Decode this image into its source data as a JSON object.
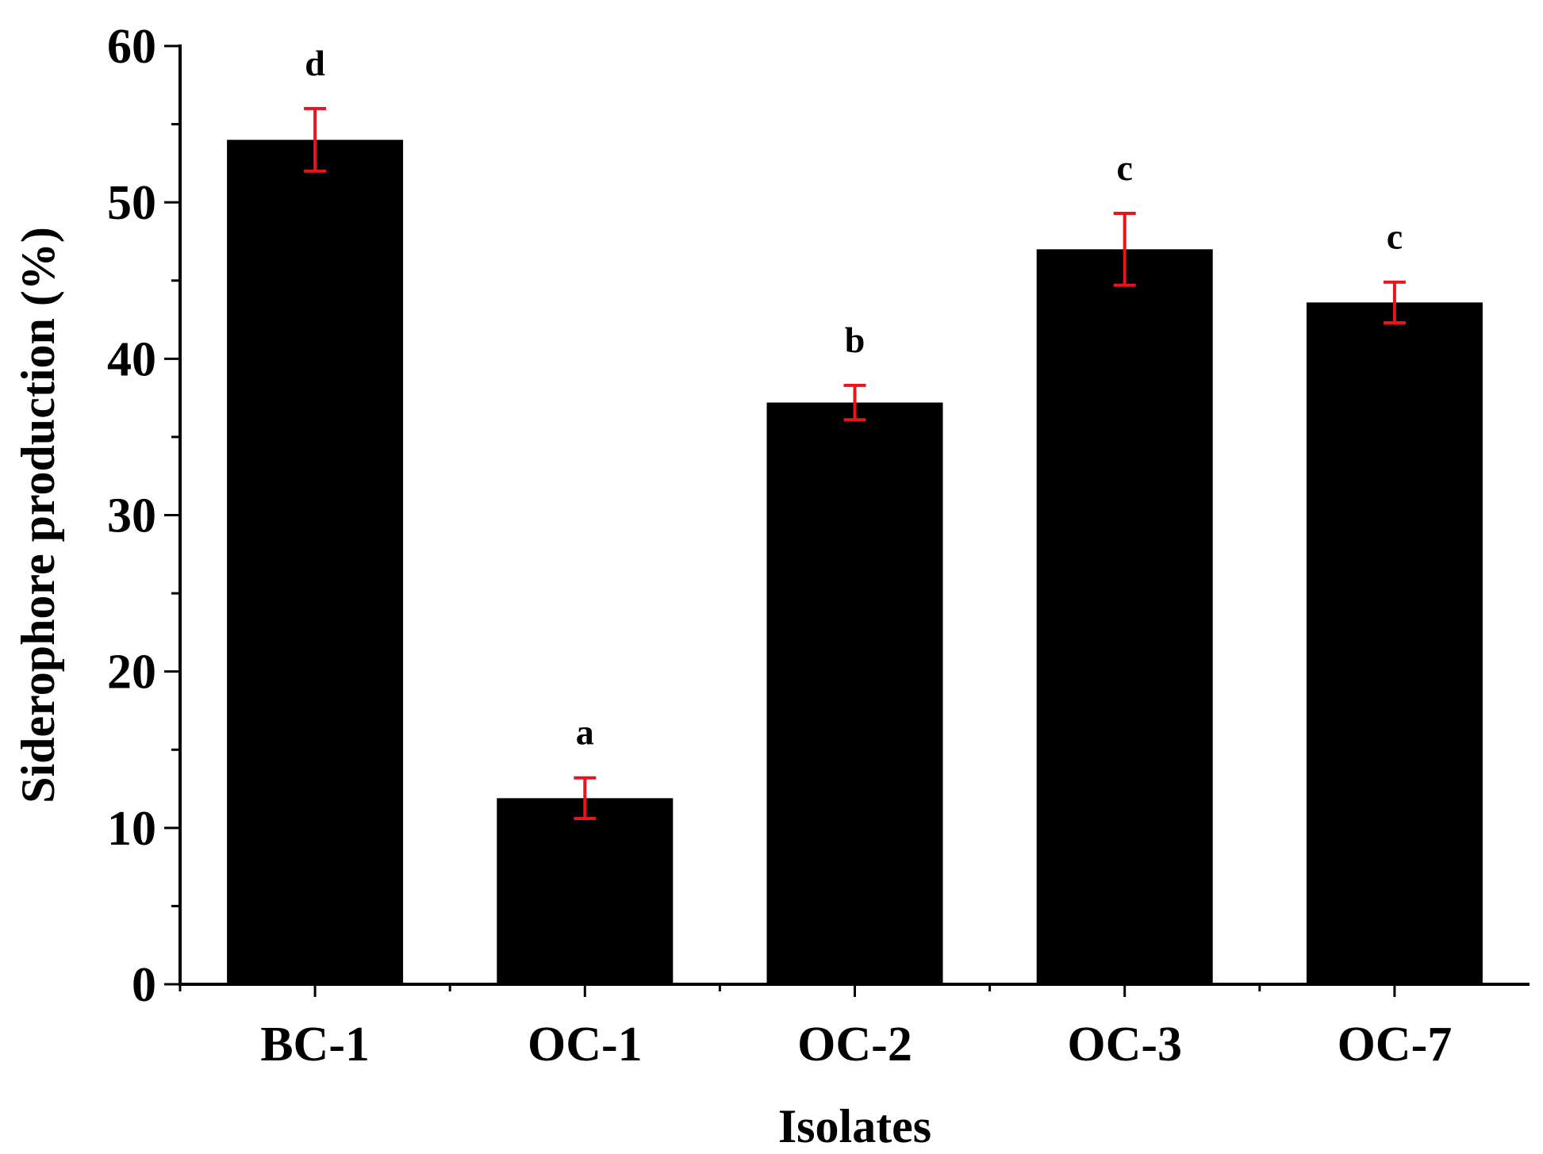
{
  "chart_data": {
    "type": "bar",
    "title": "",
    "xlabel": "Isolates",
    "ylabel": "Siderophore production (%)",
    "ylim": [
      0,
      60
    ],
    "yticks": [
      0,
      10,
      20,
      30,
      40,
      50,
      60
    ],
    "y_minor_step": 5,
    "grid": false,
    "categories": [
      "BC-1",
      "OC-1",
      "OC-2",
      "OC-3",
      "OC-7"
    ],
    "values": [
      54.0,
      11.9,
      37.2,
      47.0,
      43.6
    ],
    "errors": [
      2.0,
      1.3,
      1.1,
      2.3,
      1.3
    ],
    "significance": [
      "d",
      "a",
      "b",
      "c",
      "c"
    ],
    "colors": {
      "bar": "#000000",
      "error_bar": "#e8141b"
    }
  }
}
